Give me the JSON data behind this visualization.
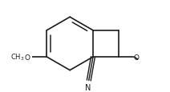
{
  "bg_color": "#ffffff",
  "line_color": "#1a1a1a",
  "lw": 1.2,
  "fs": 6.5,
  "figsize": [
    2.12,
    1.16
  ],
  "dpi": 100,
  "bl": 0.3,
  "hcx": 0.38,
  "hcy": 0.55,
  "xlim": [
    -0.05,
    1.15
  ],
  "ylim": [
    0.05,
    1.05
  ]
}
